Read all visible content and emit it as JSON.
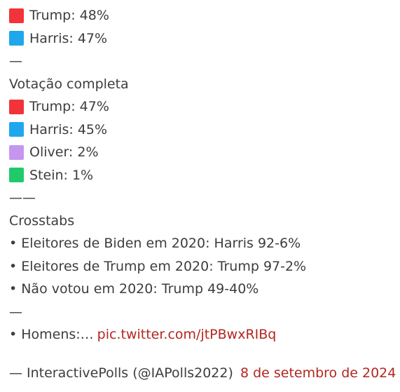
{
  "colors": {
    "trump": "#f2333a",
    "harris": "#1ea7ec",
    "oliver": "#c596f0",
    "stein": "#1fca6a",
    "link": "#b3261e",
    "text": "#3d3d3d"
  },
  "head_to_head": [
    {
      "icon": "red-square-icon",
      "color": "#f2333a",
      "text": "Trump: 48%"
    },
    {
      "icon": "blue-square-icon",
      "color": "#1ea7ec",
      "text": "Harris: 47%"
    }
  ],
  "separator_1": "—",
  "full_vote": {
    "heading": "Votação completa",
    "items": [
      {
        "icon": "red-square-icon",
        "color": "#f2333a",
        "text": "Trump: 47%"
      },
      {
        "icon": "blue-square-icon",
        "color": "#1ea7ec",
        "text": "Harris: 45%"
      },
      {
        "icon": "purple-square-icon",
        "color": "#c596f0",
        "text": "Oliver: 2%"
      },
      {
        "icon": "green-square-icon",
        "color": "#1fca6a",
        "text": "Stein: 1%"
      }
    ]
  },
  "separator_2": "——",
  "crosstabs": {
    "heading": "Crosstabs",
    "bullet": "•",
    "items": [
      "Eleitores de Biden em 2020: Harris 92-6%",
      "Eleitores de Trump em 2020: Trump 97-2%",
      "Não votou em 2020: Trump 49-40%"
    ]
  },
  "separator_3": "—",
  "men_line": {
    "bullet": "•",
    "text": "Homens:…",
    "link": "pic.twitter.com/jtPBwxRIBq"
  },
  "footer": {
    "dash": "—",
    "author": "InteractivePolls (@IAPolls2022)",
    "date": "8 de setembro de 2024"
  }
}
